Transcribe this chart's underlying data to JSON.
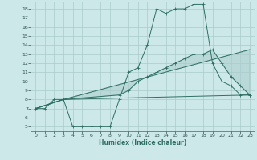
{
  "xlabel": "Humidex (Indice chaleur)",
  "xlim": [
    -0.5,
    23.5
  ],
  "ylim": [
    4.5,
    18.8
  ],
  "xticks": [
    0,
    1,
    2,
    3,
    4,
    5,
    6,
    7,
    8,
    9,
    10,
    11,
    12,
    13,
    14,
    15,
    16,
    17,
    18,
    19,
    20,
    21,
    22,
    23
  ],
  "yticks": [
    5,
    6,
    7,
    8,
    9,
    10,
    11,
    12,
    13,
    14,
    15,
    16,
    17,
    18
  ],
  "bg_color": "#cce8e8",
  "grid_color": "#aacccc",
  "line_color": "#2e6e62",
  "line1_x": [
    0,
    1,
    2,
    3,
    4,
    5,
    6,
    7,
    8,
    9,
    10,
    11,
    12,
    13,
    14,
    15,
    16,
    17,
    18,
    19,
    20,
    21,
    22,
    23
  ],
  "line1_y": [
    7,
    7,
    8,
    8,
    5,
    5,
    5,
    5,
    5,
    8,
    11,
    11.5,
    14,
    18,
    17.5,
    18,
    18,
    18.5,
    18.5,
    12,
    10,
    9.5,
    8.5,
    8.5
  ],
  "line2_x": [
    0,
    3,
    23
  ],
  "line2_y": [
    7,
    8,
    8.5
  ],
  "line3_x": [
    0,
    3,
    9,
    10,
    11,
    12,
    13,
    14,
    15,
    16,
    17,
    18,
    19,
    20,
    21,
    22,
    23
  ],
  "line3_y": [
    7,
    8,
    8.5,
    9,
    10,
    10.5,
    11,
    11.5,
    12,
    12.5,
    13,
    13,
    13.5,
    12,
    10.5,
    9.5,
    8.5
  ],
  "line4_x": [
    0,
    3,
    23
  ],
  "line4_y": [
    7,
    8,
    13.5
  ],
  "figsize": [
    3.2,
    2.0
  ],
  "dpi": 100
}
